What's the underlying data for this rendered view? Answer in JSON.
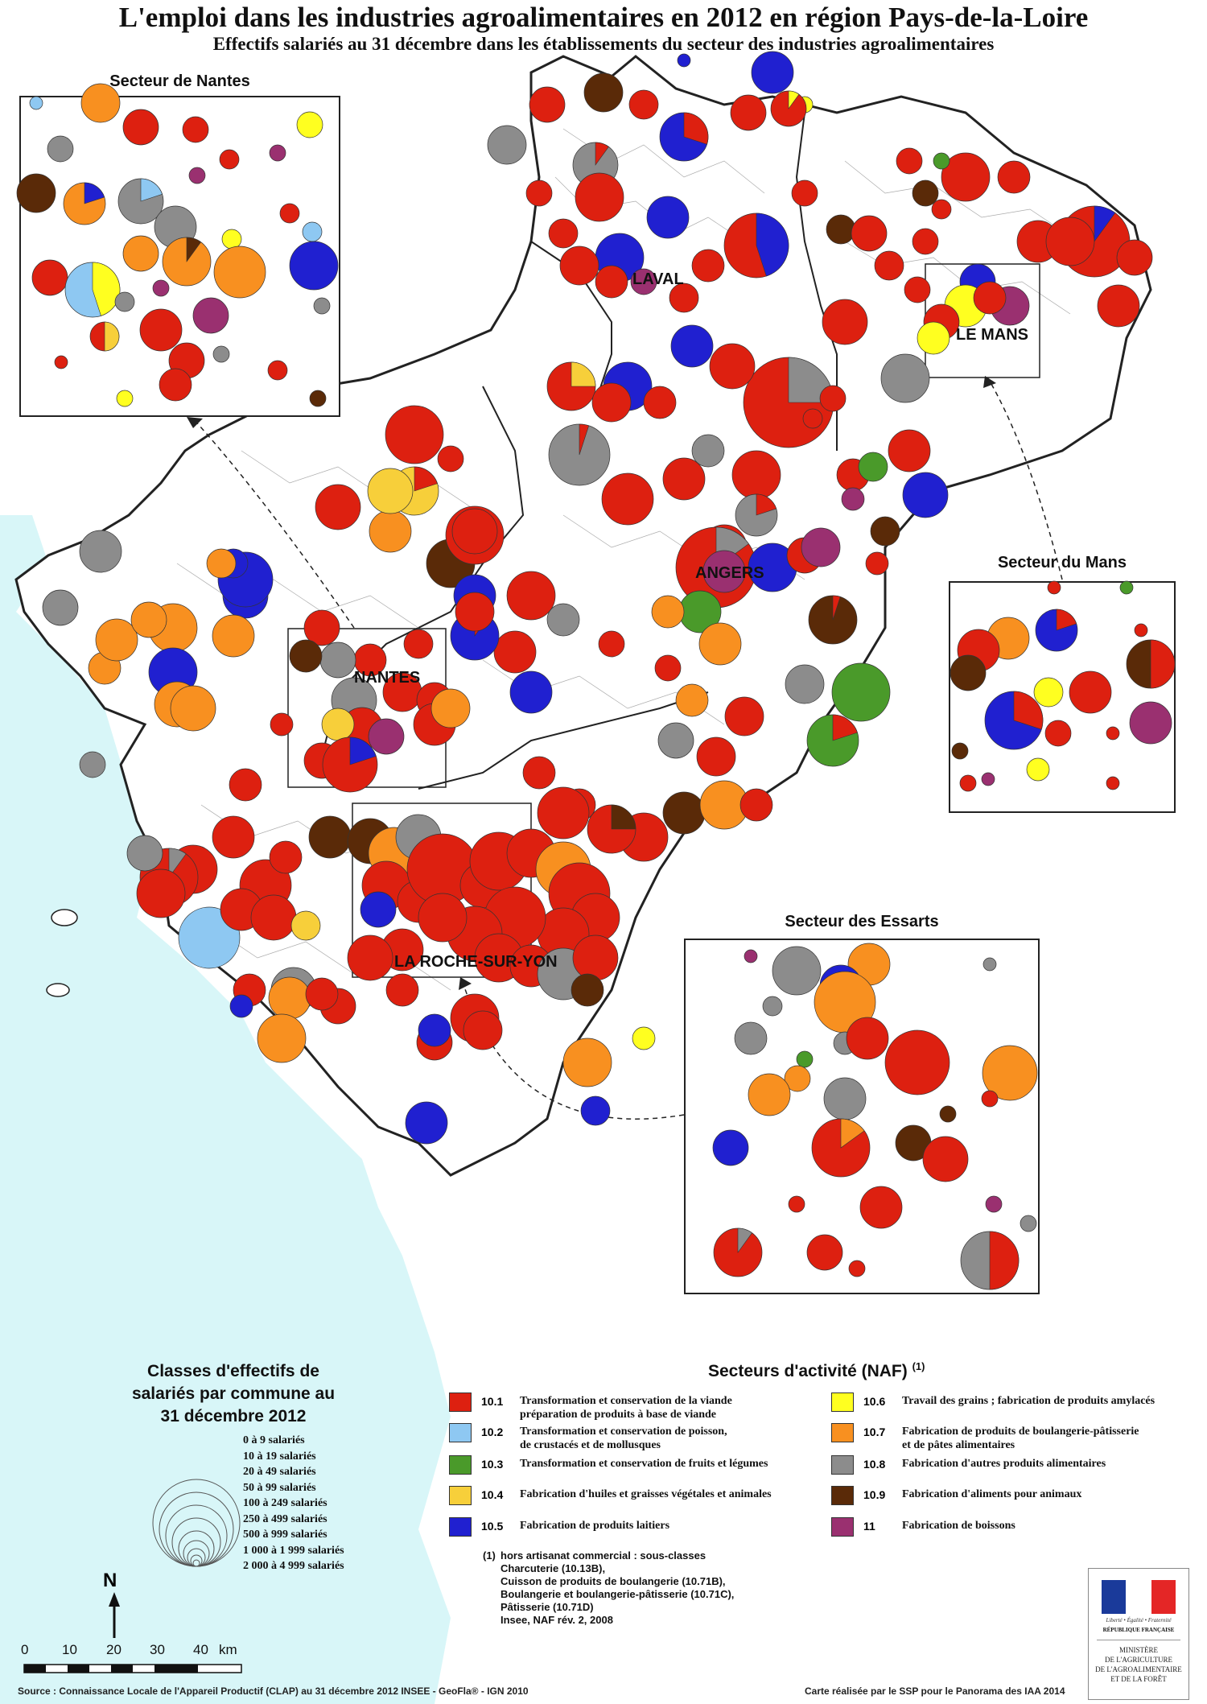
{
  "title": "L'emploi dans les industries agroalimentaires en 2012 en région Pays-de-la-Loire",
  "subtitle": "Effectifs salariés au 31 décembre  dans les établissements du secteur des industries agroalimentaires",
  "insets": {
    "nantes": "Secteur de Nantes",
    "le_mans": "Secteur du Mans",
    "essarts": "Secteur des Essarts"
  },
  "cities": {
    "laval": "LAVAL",
    "le_mans": "LE MANS",
    "angers": "ANGERS",
    "nantes": "NANTES",
    "la_roche": "LA ROCHE-SUR-YON"
  },
  "size_legend": {
    "title": "Classes d'effectifs de salariés par commune au 31 décembre 2012",
    "classes": [
      "0 à 9 salariés",
      "10 à 19 salariés",
      "20 à 49 salariés",
      "50 à 99 salariés",
      "100 à 249 salariés",
      "250 à 499 salariés",
      "500 à 999 salariés",
      "1 000 à 1 999 salariés",
      "2 000 à 4 999 salariés"
    ]
  },
  "sector_legend": {
    "title": "Secteurs d'activité (NAF)",
    "note_mark": "(1)",
    "items": [
      {
        "code": "10.1",
        "label": "Transformation et conservation de la viande\npréparation de produits à base de viande",
        "color": "#dd2010"
      },
      {
        "code": "10.2",
        "label": "Transformation et conservation de poisson,\nde crustacés et de mollusques",
        "color": "#8ec8f2"
      },
      {
        "code": "10.3",
        "label": "Transformation et conservation de fruits et légumes",
        "color": "#4a9a2a"
      },
      {
        "code": "10.4",
        "label": "Fabrication d'huiles et graisses végétales et animales",
        "color": "#f7cf3a"
      },
      {
        "code": "10.5",
        "label": "Fabrication de produits laitiers",
        "color": "#2020d0"
      },
      {
        "code": "10.6",
        "label": "Travail des grains ; fabrication de produits amylacés",
        "color": "#ffff20"
      },
      {
        "code": "10.7",
        "label": "Fabrication de produits de boulangerie-pâtisserie\net de pâtes alimentaires",
        "color": "#f89020"
      },
      {
        "code": "10.8",
        "label": "Fabrication d'autres produits alimentaires",
        "color": "#8c8c8c"
      },
      {
        "code": "10.9",
        "label": "Fabrication d'aliments pour animaux",
        "color": "#5a2a08"
      },
      {
        "code": "11",
        "label": "Fabrication de boissons",
        "color": "#9a3070"
      }
    ]
  },
  "footnote": {
    "mark": "(1)",
    "lines": [
      "hors artisanat commercial : sous-classes",
      "Charcuterie (10.13B),",
      "Cuisson de produits de boulangerie (10.71B),",
      "Boulangerie et boulangerie-pâtisserie (10.71C),",
      "Pâtisserie (10.71D)",
      "Insee, NAF rév. 2, 2008"
    ]
  },
  "north": "N",
  "scale": {
    "ticks": [
      "0",
      "10",
      "20",
      "30",
      "40"
    ],
    "unit": "km"
  },
  "source": "Source : Connaissance Locale de l'Appareil Productif (CLAP) au 31 décembre 2012  INSEE - GeoFla® - IGN 2010",
  "credits": "Carte réalisée par le SSP pour le Panorama des IAA 2014",
  "logo": {
    "motto": "Liberté • Égalité • Fraternité",
    "republique": "RÉPUBLIQUE FRANÇAISE",
    "ministry": [
      "MINISTÈRE",
      "DE L'AGRICULTURE",
      "DE L'AGROALIMENTAIRE",
      "ET DE LA FORÊT"
    ]
  },
  "sea_color": "#d8f6f8",
  "land_color": "#ffffff",
  "border_color": "#222222"
}
